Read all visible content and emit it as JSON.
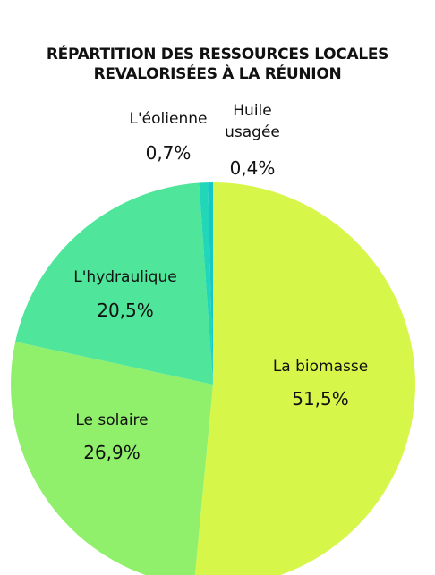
{
  "chart_data": {
    "type": "pie",
    "title": "RÉPARTITION DES RESSOURCES LOCALES REVALORISÉES À LA RÉUNION",
    "categories": [
      "La biomasse",
      "Le solaire",
      "L'hydraulique",
      "L'éolienne",
      "Huile usagée"
    ],
    "values": [
      51.5,
      26.9,
      20.5,
      0.7,
      0.4
    ],
    "value_labels": [
      "51,5%",
      "26,9%",
      "20,5%",
      "0,7%",
      "0,4%"
    ],
    "colors": [
      "#d6f74a",
      "#90f06c",
      "#4fe59a",
      "#22d6b8",
      "#14c8c8"
    ]
  }
}
